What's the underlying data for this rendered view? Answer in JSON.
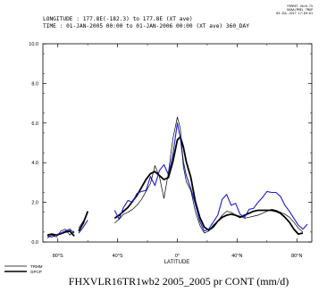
{
  "header": {
    "line1": "LONGITUDE : 177.8E(-182.3) to 177.8E (XT ave)",
    "line2": "TIME : 01-JAN-2005 00:00 to 01-JAN-2006 00:00 (XT ave) 360_DAY",
    "stamp": [
      "FERRET Ver6.75",
      "NOAA/PMEL TMAP",
      "05-JUL-2017 17:09:01"
    ]
  },
  "footer": {
    "title": "FHXVLR16TR1wb2 2005_2005 pr CONT (mm/d)"
  },
  "chart_data": {
    "type": "line",
    "xlabel": "LATITUDE",
    "ylabel": "",
    "xlim": [
      -90,
      90
    ],
    "ylim": [
      0,
      10
    ],
    "x_ticks": [
      -80,
      -40,
      0,
      40,
      80
    ],
    "x_tick_labels": [
      "80°S",
      "40°S",
      "0°",
      "40°N",
      "80°N"
    ],
    "y_ticks": [
      0,
      2,
      4,
      6,
      8,
      10
    ],
    "y_tick_labels": [
      "0.0",
      "2.0",
      "4.0",
      "6.0",
      "8.0",
      "10.0"
    ],
    "legend": {
      "placement": "bottom-left",
      "entries": [
        "TRMM",
        "GPCP"
      ]
    },
    "series": [
      {
        "name": "",
        "color": "#000000",
        "width": 1.8,
        "segments": [
          [
            [
              -87,
              0.35
            ],
            [
              -84,
              0.4
            ],
            [
              -81,
              0.35
            ],
            [
              -78,
              0.42
            ],
            [
              -75,
              0.5
            ],
            [
              -72,
              0.55
            ],
            [
              -69,
              0.3
            ]
          ],
          [
            [
              -66,
              0.55
            ],
            [
              -63,
              0.95
            ],
            [
              -60,
              1.55
            ]
          ],
          [
            [
              -42,
              1.2
            ],
            [
              -39,
              1.35
            ],
            [
              -36,
              1.55
            ],
            [
              -33,
              1.75
            ],
            [
              -30,
              2.05
            ],
            [
              -27,
              2.35
            ],
            [
              -24,
              2.75
            ],
            [
              -21,
              3.15
            ],
            [
              -18,
              3.45
            ],
            [
              -15,
              3.55
            ],
            [
              -12,
              3.35
            ],
            [
              -9,
              3.15
            ],
            [
              -6,
              3.25
            ],
            [
              -3,
              4.05
            ],
            [
              0,
              5.15
            ],
            [
              2,
              5.3
            ],
            [
              4,
              4.8
            ],
            [
              6,
              4.05
            ],
            [
              9,
              3.25
            ],
            [
              12,
              2.05
            ],
            [
              15,
              1.25
            ],
            [
              18,
              0.75
            ],
            [
              21,
              0.6
            ],
            [
              24,
              0.75
            ],
            [
              27,
              1.05
            ],
            [
              30,
              1.25
            ],
            [
              33,
              1.35
            ],
            [
              36,
              1.4
            ],
            [
              39,
              1.35
            ],
            [
              42,
              1.25
            ],
            [
              45,
              1.35
            ],
            [
              48,
              1.45
            ],
            [
              51,
              1.55
            ],
            [
              54,
              1.6
            ],
            [
              57,
              1.6
            ],
            [
              60,
              1.6
            ],
            [
              63,
              1.6
            ],
            [
              66,
              1.55
            ],
            [
              69,
              1.45
            ],
            [
              72,
              1.25
            ],
            [
              75,
              1.0
            ],
            [
              78,
              0.65
            ],
            [
              81,
              0.4
            ],
            [
              84,
              0.45
            ]
          ]
        ]
      },
      {
        "name": "",
        "color": "#1c1ccc",
        "width": 1.1,
        "segments": [
          [
            [
              -87,
              0.3
            ],
            [
              -84,
              0.25
            ],
            [
              -81,
              0.35
            ],
            [
              -78,
              0.45
            ],
            [
              -75,
              0.55
            ],
            [
              -72,
              0.65
            ],
            [
              -69,
              0.45
            ]
          ],
          [
            [
              -66,
              0.45
            ],
            [
              -63,
              0.75
            ],
            [
              -60,
              1.1
            ]
          ],
          [
            [
              -42,
              1.6
            ],
            [
              -39,
              1.15
            ],
            [
              -36,
              1.75
            ],
            [
              -33,
              2.1
            ],
            [
              -30,
              2.0
            ],
            [
              -27,
              2.45
            ],
            [
              -24,
              2.55
            ],
            [
              -21,
              2.6
            ],
            [
              -18,
              3.3
            ],
            [
              -15,
              2.85
            ],
            [
              -12,
              3.6
            ],
            [
              -9,
              3.9
            ],
            [
              -6,
              3.4
            ],
            [
              -3,
              4.4
            ],
            [
              0,
              6.0
            ],
            [
              2,
              5.25
            ],
            [
              4,
              4.05
            ],
            [
              6,
              3.35
            ],
            [
              9,
              2.7
            ],
            [
              12,
              1.9
            ],
            [
              15,
              1.05
            ],
            [
              18,
              0.55
            ],
            [
              21,
              0.65
            ],
            [
              24,
              1.0
            ],
            [
              27,
              1.35
            ],
            [
              30,
              2.15
            ],
            [
              33,
              2.4
            ],
            [
              36,
              1.85
            ],
            [
              39,
              1.95
            ],
            [
              42,
              1.4
            ],
            [
              45,
              1.25
            ],
            [
              48,
              1.65
            ],
            [
              51,
              1.7
            ],
            [
              54,
              2.0
            ],
            [
              57,
              2.25
            ],
            [
              60,
              2.55
            ],
            [
              63,
              2.5
            ],
            [
              66,
              2.5
            ],
            [
              69,
              2.3
            ],
            [
              72,
              1.85
            ],
            [
              75,
              1.55
            ],
            [
              78,
              1.2
            ],
            [
              81,
              0.85
            ],
            [
              84,
              0.65
            ],
            [
              87,
              0.9
            ]
          ]
        ]
      },
      {
        "name": "",
        "color": "#000000",
        "width": 0.7,
        "segments": [
          [
            [
              -87,
              0.2
            ],
            [
              -84,
              0.35
            ],
            [
              -81,
              0.25
            ],
            [
              -78,
              0.55
            ],
            [
              -75,
              0.65
            ],
            [
              -72,
              0.35
            ],
            [
              -69,
              0.55
            ]
          ],
          [
            [
              -66,
              0.7
            ],
            [
              -63,
              1.05
            ],
            [
              -60,
              1.45
            ]
          ],
          [
            [
              -42,
              0.95
            ],
            [
              -39,
              1.15
            ],
            [
              -36,
              1.4
            ],
            [
              -33,
              1.5
            ],
            [
              -30,
              1.65
            ],
            [
              -27,
              1.85
            ],
            [
              -24,
              2.15
            ],
            [
              -21,
              2.55
            ],
            [
              -18,
              2.95
            ],
            [
              -15,
              3.85
            ],
            [
              -12,
              3.3
            ],
            [
              -9,
              2.2
            ],
            [
              -6,
              3.5
            ],
            [
              -3,
              5.2
            ],
            [
              0,
              6.3
            ],
            [
              2,
              5.75
            ],
            [
              4,
              3.8
            ],
            [
              6,
              3.05
            ],
            [
              9,
              2.6
            ],
            [
              12,
              1.55
            ],
            [
              15,
              0.85
            ],
            [
              18,
              0.45
            ],
            [
              21,
              0.55
            ],
            [
              24,
              0.85
            ],
            [
              27,
              1.05
            ],
            [
              30,
              1.35
            ],
            [
              33,
              1.55
            ],
            [
              36,
              1.5
            ],
            [
              39,
              1.35
            ],
            [
              42,
              1.3
            ],
            [
              45,
              1.2
            ],
            [
              48,
              1.25
            ],
            [
              51,
              1.3
            ],
            [
              54,
              1.35
            ],
            [
              57,
              1.45
            ],
            [
              60,
              1.55
            ],
            [
              63,
              1.65
            ],
            [
              66,
              1.6
            ],
            [
              69,
              1.5
            ],
            [
              72,
              1.4
            ],
            [
              75,
              1.25
            ],
            [
              78,
              1.0
            ],
            [
              81,
              0.7
            ],
            [
              84,
              0.5
            ]
          ]
        ]
      }
    ]
  }
}
